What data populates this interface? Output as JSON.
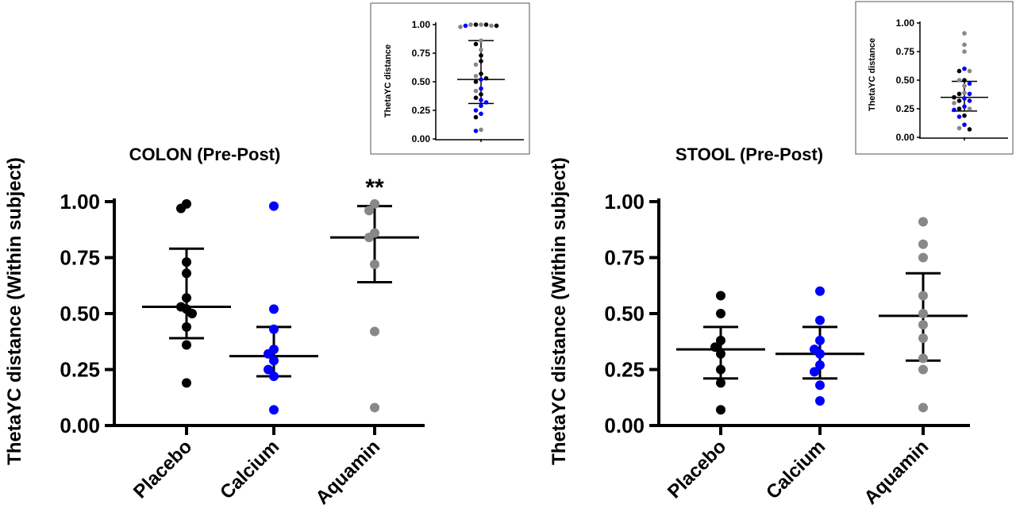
{
  "chart_data": [
    {
      "type": "scatter",
      "title": "COLON (Pre-Post)",
      "xlabel": "",
      "ylabel": "ThetaYC distance (Within subject)",
      "ylim": [
        0,
        1
      ],
      "yticks": [
        "0.00",
        "0.25",
        "0.50",
        "0.75",
        "1.00"
      ],
      "categories": [
        "Placebo",
        "Calcium",
        "Aquamin"
      ],
      "annotation": {
        "text": "**",
        "category": "Aquamin"
      },
      "series": [
        {
          "category": "Placebo",
          "color": "#000000",
          "mean": 0.53,
          "error": [
            0.39,
            0.79
          ],
          "values": [
            0.99,
            0.97,
            0.73,
            0.68,
            0.57,
            0.53,
            0.52,
            0.5,
            0.44,
            0.36,
            0.19
          ]
        },
        {
          "category": "Calcium",
          "color": "#0000ff",
          "mean": 0.31,
          "error": [
            0.22,
            0.44
          ],
          "values": [
            0.98,
            0.52,
            0.43,
            0.34,
            0.32,
            0.29,
            0.25,
            0.22,
            0.07
          ]
        },
        {
          "category": "Aquamin",
          "color": "#888888",
          "mean": 0.84,
          "error": [
            0.64,
            0.98
          ],
          "values": [
            0.99,
            0.96,
            0.86,
            0.84,
            0.72,
            0.42,
            0.08
          ]
        }
      ]
    },
    {
      "type": "scatter",
      "title": "STOOL (Pre-Post)",
      "xlabel": "",
      "ylabel": "ThetaYC distance (Within subject)",
      "ylim": [
        0,
        1
      ],
      "yticks": [
        "0.00",
        "0.25",
        "0.50",
        "0.75",
        "1.00"
      ],
      "categories": [
        "Placebo",
        "Calcium",
        "Aquamin"
      ],
      "series": [
        {
          "category": "Placebo",
          "color": "#000000",
          "mean": 0.34,
          "error": [
            0.21,
            0.44
          ],
          "values": [
            0.58,
            0.5,
            0.38,
            0.35,
            0.32,
            0.25,
            0.19,
            0.07
          ]
        },
        {
          "category": "Calcium",
          "color": "#0000ff",
          "mean": 0.32,
          "error": [
            0.21,
            0.44
          ],
          "values": [
            0.6,
            0.47,
            0.38,
            0.34,
            0.32,
            0.27,
            0.24,
            0.18,
            0.11
          ]
        },
        {
          "category": "Aquamin",
          "color": "#888888",
          "mean": 0.49,
          "error": [
            0.29,
            0.68
          ],
          "values": [
            0.91,
            0.81,
            0.75,
            0.58,
            0.5,
            0.45,
            0.39,
            0.3,
            0.25,
            0.08
          ]
        }
      ]
    },
    {
      "type": "scatter",
      "title": "",
      "xlabel": "",
      "ylabel": "ThetaYC distance",
      "ylim": [
        0,
        1
      ],
      "yticks": [
        "0.00",
        "0.25",
        "0.50",
        "0.75",
        "1.00"
      ],
      "mean": 0.52,
      "error": [
        0.31,
        0.86
      ],
      "points": [
        {
          "v": 1.0,
          "c": "#888888"
        },
        {
          "v": 1.0,
          "c": "#000000"
        },
        {
          "v": 1.0,
          "c": "#000000"
        },
        {
          "v": 1.0,
          "c": "#888888"
        },
        {
          "v": 0.99,
          "c": "#888888"
        },
        {
          "v": 0.99,
          "c": "#0000ff"
        },
        {
          "v": 0.99,
          "c": "#000000"
        },
        {
          "v": 0.98,
          "c": "#888888"
        },
        {
          "v": 0.86,
          "c": "#888888"
        },
        {
          "v": 0.83,
          "c": "#000000"
        },
        {
          "v": 0.78,
          "c": "#888888"
        },
        {
          "v": 0.73,
          "c": "#000000"
        },
        {
          "v": 0.68,
          "c": "#000000"
        },
        {
          "v": 0.65,
          "c": "#888888"
        },
        {
          "v": 0.57,
          "c": "#000000"
        },
        {
          "v": 0.55,
          "c": "#888888"
        },
        {
          "v": 0.53,
          "c": "#000000"
        },
        {
          "v": 0.52,
          "c": "#0000ff"
        },
        {
          "v": 0.5,
          "c": "#000000"
        },
        {
          "v": 0.44,
          "c": "#0000ff"
        },
        {
          "v": 0.42,
          "c": "#888888"
        },
        {
          "v": 0.39,
          "c": "#000000"
        },
        {
          "v": 0.36,
          "c": "#000000"
        },
        {
          "v": 0.34,
          "c": "#0000ff"
        },
        {
          "v": 0.32,
          "c": "#0000ff"
        },
        {
          "v": 0.29,
          "c": "#0000ff"
        },
        {
          "v": 0.25,
          "c": "#0000ff"
        },
        {
          "v": 0.22,
          "c": "#0000ff"
        },
        {
          "v": 0.19,
          "c": "#000000"
        },
        {
          "v": 0.08,
          "c": "#888888"
        },
        {
          "v": 0.07,
          "c": "#0000ff"
        }
      ]
    },
    {
      "type": "scatter",
      "title": "",
      "xlabel": "",
      "ylabel": "ThetaYC distance",
      "ylim": [
        0,
        1
      ],
      "yticks": [
        "0.00",
        "0.25",
        "0.50",
        "0.75",
        "1.00"
      ],
      "mean": 0.35,
      "error": [
        0.23,
        0.49
      ],
      "points": [
        {
          "v": 0.91,
          "c": "#888888"
        },
        {
          "v": 0.81,
          "c": "#888888"
        },
        {
          "v": 0.75,
          "c": "#888888"
        },
        {
          "v": 0.6,
          "c": "#0000ff"
        },
        {
          "v": 0.58,
          "c": "#000000"
        },
        {
          "v": 0.58,
          "c": "#888888"
        },
        {
          "v": 0.5,
          "c": "#000000"
        },
        {
          "v": 0.5,
          "c": "#888888"
        },
        {
          "v": 0.47,
          "c": "#0000ff"
        },
        {
          "v": 0.45,
          "c": "#888888"
        },
        {
          "v": 0.39,
          "c": "#888888"
        },
        {
          "v": 0.38,
          "c": "#000000"
        },
        {
          "v": 0.38,
          "c": "#0000ff"
        },
        {
          "v": 0.35,
          "c": "#000000"
        },
        {
          "v": 0.34,
          "c": "#0000ff"
        },
        {
          "v": 0.32,
          "c": "#000000"
        },
        {
          "v": 0.32,
          "c": "#0000ff"
        },
        {
          "v": 0.3,
          "c": "#888888"
        },
        {
          "v": 0.27,
          "c": "#0000ff"
        },
        {
          "v": 0.25,
          "c": "#000000"
        },
        {
          "v": 0.25,
          "c": "#888888"
        },
        {
          "v": 0.24,
          "c": "#0000ff"
        },
        {
          "v": 0.19,
          "c": "#000000"
        },
        {
          "v": 0.18,
          "c": "#0000ff"
        },
        {
          "v": 0.11,
          "c": "#0000ff"
        },
        {
          "v": 0.08,
          "c": "#888888"
        },
        {
          "v": 0.07,
          "c": "#000000"
        }
      ]
    }
  ]
}
